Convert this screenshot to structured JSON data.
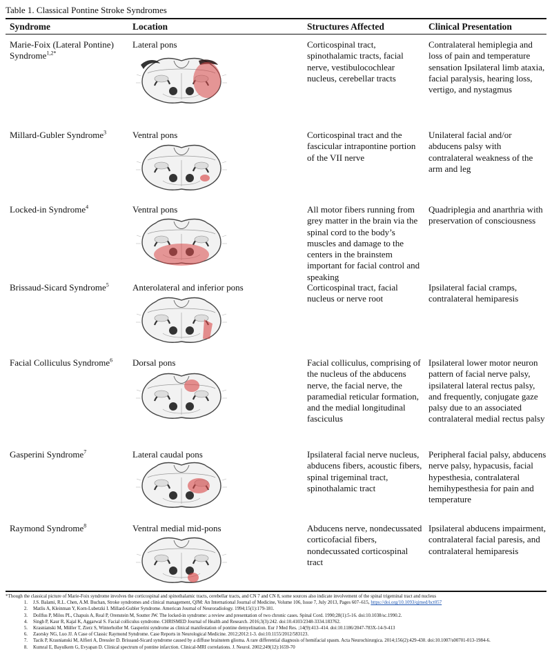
{
  "caption": "Table 1. Classical Pontine Stroke Syndromes",
  "headers": [
    "Syndrome",
    "Location",
    "Structures Affected",
    "Clinical Presentation"
  ],
  "rows": [
    {
      "syndrome": "Marie-Foix (Lateral Pontine) Syndrome",
      "sup": "1,2*",
      "location": "Lateral pons",
      "structures": "Corticospinal tract, spinothalamic tracts, facial nerve, vestibulocochlear nucleus, cerebellar tracts",
      "clinical": "Contralateral hemiplegia and loss of pain and temperature sensation Ipsilateral limb ataxia, facial paralysis, hearing loss, vertigo, and nystagmus",
      "lesion": "lateral"
    },
    {
      "syndrome": "Millard-Gubler Syndrome",
      "sup": "3",
      "location": "Ventral pons",
      "structures": "Corticospinal tract and the fascicular intrapontine portion of the VII nerve",
      "clinical": "Unilateral facial and/or abducens palsy with contralateral weakness of the arm and leg",
      "lesion": "ventral-small"
    },
    {
      "syndrome": "Locked-in Syndrome",
      "sup": "4",
      "location": "Ventral pons",
      "structures": "All motor fibers running from grey matter in the brain via the spinal cord to the body’s muscles and damage to the centers in the brainstem important for facial control and speaking",
      "clinical": "Quadriplegia and anarthria with preservation of consciousness",
      "lesion": "ventral-large"
    },
    {
      "syndrome": "Brissaud-Sicard Syndrome",
      "sup": "5",
      "location": "Anterolateral and inferior pons",
      "structures": "Corticospinal tract, facial nucleus or nerve root",
      "clinical": "Ipsilateral facial cramps, contralateral hemiparesis",
      "lesion": "anterolateral"
    },
    {
      "syndrome": "Facial Colliculus Syndrome",
      "sup": "6",
      "location": "Dorsal pons",
      "structures": "Facial colliculus, comprising of the nucleus of the abducens nerve, the facial nerve, the paramedial reticular formation, and the medial longitudinal fasciculus",
      "clinical": "Ipsilateral lower motor neuron pattern of facial nerve palsy, ipsilateral lateral rectus palsy, and frequently, conjugate gaze palsy due to an associated contralateral medial rectus palsy",
      "lesion": "dorsal"
    },
    {
      "syndrome": "Gasperini Syndrome",
      "sup": "7",
      "location": "Lateral caudal pons",
      "structures": "Ipsilateral facial nerve nucleus, abducens fibers, acoustic fibers, spinal trigeminal tract, spinothalamic tract",
      "clinical": "Peripheral facial palsy, abducens nerve palsy, hypacusis, facial hypesthesia, contralateral hemihypesthesia for pain and temperature",
      "lesion": "lateral-caudal"
    },
    {
      "syndrome": "Raymond Syndrome",
      "sup": "8",
      "location": "Ventral medial mid-pons",
      "structures": "Abducens nerve, nondecussated corticofacial fibers, nondecussated corticospinal tract",
      "clinical": "Ipsilateral abducens impairment, contralateral facial paresis, and contralateral hemiparesis",
      "lesion": "ventral-medial"
    }
  ],
  "footnote": "*Though the classical picture of Marie-Foix syndrome involves the corticospinal and spinothalamic tracts, cerebellar tracts, and CN 7 and CN 8, some sources also indicate involvement of the spinal trigeminal tract and nucleus",
  "references": [
    {
      "num": "1.",
      "text": "J.S. Balami, R.L. Chen, A.M. Buchan, Stroke syndromes and clinical management, QJM: An International Journal of Medicine, Volume 106, Issue 7, July 2013, Pages 607–615,",
      "link": "https://doi.org/10.1093/qjmed/hct057"
    },
    {
      "num": "2.",
      "text": "Matlis A, Kleinman Y, Korn-Lubetzki I. Millard-Gubler Syndrome. American Journal of Neuroradiology. 1994;15(1):179-181."
    },
    {
      "num": "3.",
      "text": "Dollfus P, Milos PL, Chapuis A, Real P, Orenstein M, Soutter JW. The locked-in syndrome: a review and presentation of two chronic cases. Spinal Cord. 1990;28(1):5-16. doi:10.1038/sc.1990.2."
    },
    {
      "num": "4.",
      "text": "Singh P, Kaur R, Kajal K, Aggarwal S. Facial colliculus syndrome. CHRISMED Journal of Health and Research. 2016;3(3):242. doi:10.4103/2348-3334.183762."
    },
    {
      "num": "5.",
      "text": "Krasnianski M, Müller T, Zierz S, Winterholler M. Gasperini syndrome as clinical manifestation of pontine demyelination. Eur J Med Res. ;14(9):413–414. doi:10.1186/2047-783X-14-9-413"
    },
    {
      "num": "6.",
      "text": "Zaorsky NG, Luo JJ. A Case of Classic Raymond Syndrome. Case Reports in Neurological Medicine. 2012;2012:1-3. doi:10.1155/2012/583123."
    },
    {
      "num": "7.",
      "text": "Tacik P, Krasnianski M, Alfieri A, Dressler D. Brissaud-Sicard syndrome caused by a diffuse brainstem glioma. A rare differential diagnosis of hemifacial spasm. Acta Neurochirurgica. 2014;156(2):429-430. doi:10.1007/s00701-013-1984-6."
    },
    {
      "num": "8.",
      "text": "Kumral E, Bayulkem G, Evyapan D. Clinical spectrum of pontine infarction. Clinical-MRI correlations. J. Neurol. 2002;249(12):1659-70"
    }
  ],
  "colors": {
    "lesion": "#d94848",
    "lesion_dark": "#2a1616",
    "text": "#111111",
    "link": "#1a53b0"
  }
}
